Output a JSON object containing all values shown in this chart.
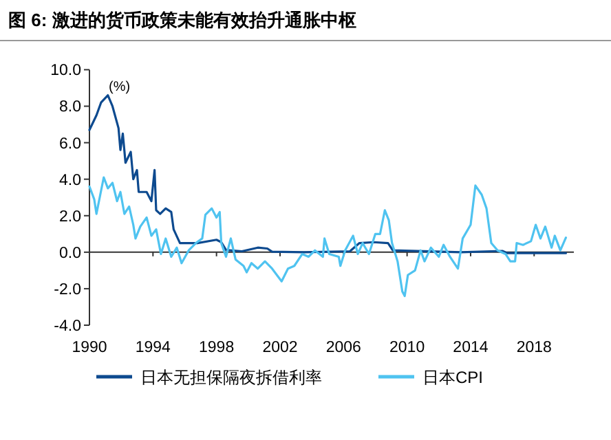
{
  "chart_data": {
    "type": "line",
    "title": "图 6:  激进的货币政策未能有效抬升通胀中枢",
    "ylabel": "(%)",
    "xlim": [
      1990,
      2020.5
    ],
    "xticks": [
      1990,
      1994,
      1998,
      2002,
      2006,
      2010,
      2014,
      2018
    ],
    "ylim": [
      -4,
      10
    ],
    "yticks": [
      {
        "value": -4,
        "label": "-4.0"
      },
      {
        "value": -2,
        "label": "-2.0"
      },
      {
        "value": 0,
        "label": "0.0"
      },
      {
        "value": 2,
        "label": "2.0"
      },
      {
        "value": 4,
        "label": "4.0"
      },
      {
        "value": 6,
        "label": "6.0"
      },
      {
        "value": 8,
        "label": "8.0"
      },
      {
        "value": 10,
        "label": "10.0"
      }
    ],
    "legend": "bottom",
    "line_style": "solid",
    "marker": "none",
    "series": [
      {
        "name": "日本无担保隔夜拆借利率",
        "color": "#0d4a8f",
        "x": [
          1990.0,
          1990.44,
          1990.73,
          1991.16,
          1991.45,
          1991.83,
          1991.95,
          1992.1,
          1992.27,
          1992.6,
          1992.76,
          1992.99,
          1993.1,
          1993.6,
          1993.9,
          1994.1,
          1994.2,
          1994.45,
          1994.8,
          1995.15,
          1995.3,
          1995.7,
          1996.8,
          1998.0,
          1998.3,
          1998.6,
          1999.6,
          2000.6,
          2001.2,
          2001.5,
          2003.5,
          2006.4,
          2007.0,
          2007.9,
          2008.8,
          2009.1,
          2013.4,
          2016.0,
          2016.3,
          2020.0
        ],
        "values": [
          6.7,
          7.5,
          8.2,
          8.6,
          8.0,
          6.8,
          5.6,
          6.5,
          4.9,
          5.5,
          4.0,
          4.5,
          3.3,
          3.3,
          2.8,
          4.5,
          2.3,
          2.1,
          2.4,
          2.2,
          1.25,
          0.5,
          0.5,
          0.68,
          0.55,
          0.12,
          0.05,
          0.25,
          0.2,
          0.03,
          0.0,
          0.05,
          0.5,
          0.55,
          0.5,
          0.1,
          0.0,
          0.07,
          -0.05,
          -0.05
        ]
      },
      {
        "name": "日本CPI",
        "color": "#4fc3f0",
        "x": [
          1990.0,
          1990.3,
          1990.44,
          1990.67,
          1990.9,
          1991.16,
          1991.45,
          1991.74,
          1991.95,
          1992.2,
          1992.5,
          1992.76,
          1992.9,
          1993.2,
          1993.6,
          1993.9,
          1994.2,
          1994.5,
          1994.8,
          1995.15,
          1995.5,
          1995.8,
          1996.25,
          1996.7,
          1997.1,
          1997.3,
          1997.7,
          1998.0,
          1998.2,
          1998.3,
          1998.6,
          1998.9,
          1999.2,
          1999.7,
          1999.9,
          2000.2,
          2000.6,
          2001.05,
          2001.5,
          2002.1,
          2002.5,
          2002.9,
          2003.4,
          2003.8,
          2004.2,
          2004.7,
          2004.8,
          2005.1,
          2005.7,
          2005.8,
          2006.1,
          2006.6,
          2006.9,
          2007.2,
          2007.6,
          2008.0,
          2008.3,
          2008.6,
          2008.85,
          2009.05,
          2009.4,
          2009.7,
          2009.85,
          2010.05,
          2010.5,
          2010.85,
          2011.1,
          2011.5,
          2012.0,
          2012.3,
          2012.7,
          2013.2,
          2013.5,
          2014.0,
          2014.3,
          2014.7,
          2015.0,
          2015.3,
          2015.7,
          2016.2,
          2016.5,
          2016.8,
          2016.9,
          2017.3,
          2017.8,
          2018.1,
          2018.4,
          2018.7,
          2019.1,
          2019.3,
          2019.65,
          2020.0
        ],
        "values": [
          3.6,
          2.9,
          2.1,
          3.1,
          4.1,
          3.5,
          3.8,
          2.8,
          3.3,
          2.1,
          2.5,
          1.5,
          0.75,
          1.4,
          1.9,
          0.9,
          1.25,
          -0.1,
          0.75,
          -0.25,
          0.25,
          -0.6,
          0.1,
          0.5,
          0.75,
          2.05,
          2.4,
          1.9,
          2.2,
          0.5,
          -0.25,
          0.75,
          -0.4,
          -0.75,
          -1.1,
          -0.6,
          -0.9,
          -0.5,
          -0.9,
          -1.6,
          -0.9,
          -0.75,
          -0.1,
          -0.25,
          0.1,
          -0.25,
          0.75,
          -0.1,
          -0.25,
          -0.75,
          0.1,
          0.9,
          -0.1,
          0.5,
          -0.1,
          1.0,
          1.0,
          2.3,
          1.75,
          0.5,
          -0.5,
          -2.15,
          -2.4,
          -1.25,
          -1.0,
          0.1,
          -0.5,
          0.25,
          -0.25,
          0.4,
          -0.25,
          -0.9,
          0.75,
          1.5,
          3.65,
          3.15,
          2.4,
          0.5,
          0.1,
          -0.1,
          -0.5,
          -0.5,
          0.5,
          0.4,
          0.6,
          1.5,
          0.75,
          1.4,
          0.25,
          0.9,
          0.1,
          0.8
        ]
      }
    ]
  }
}
